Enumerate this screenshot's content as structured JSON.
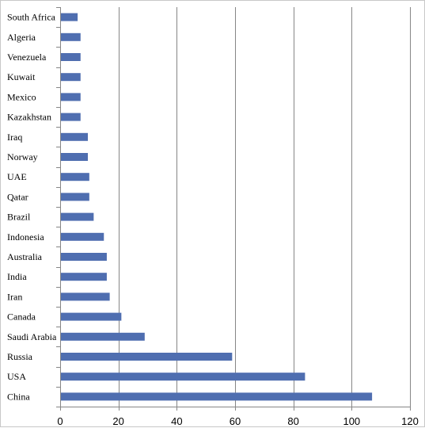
{
  "chart_data": {
    "type": "bar",
    "orientation": "horizontal",
    "categories": [
      "China",
      "USA",
      "Russia",
      "Saudi Arabia",
      "Canada",
      "Iran",
      "India",
      "Australia",
      "Indonesia",
      "Brazil",
      "Qatar",
      "UAE",
      "Norway",
      "Iraq",
      "Kazakhstan",
      "Mexico",
      "Kuwait",
      "Venezuela",
      "Algeria",
      "South Africa"
    ],
    "values": [
      107,
      84,
      59,
      29,
      21,
      17,
      16,
      16,
      15,
      11.5,
      10,
      10,
      9.5,
      9.5,
      7,
      7,
      7,
      7,
      7,
      6
    ],
    "title": "",
    "xlabel": "",
    "ylabel": "",
    "xlim": [
      0,
      120
    ],
    "xticks": [
      0,
      20,
      40,
      60,
      80,
      100,
      120
    ],
    "grid": "vertical",
    "legend": "none",
    "bar_color": "#4f6eb0",
    "grid_color": "#868686"
  }
}
